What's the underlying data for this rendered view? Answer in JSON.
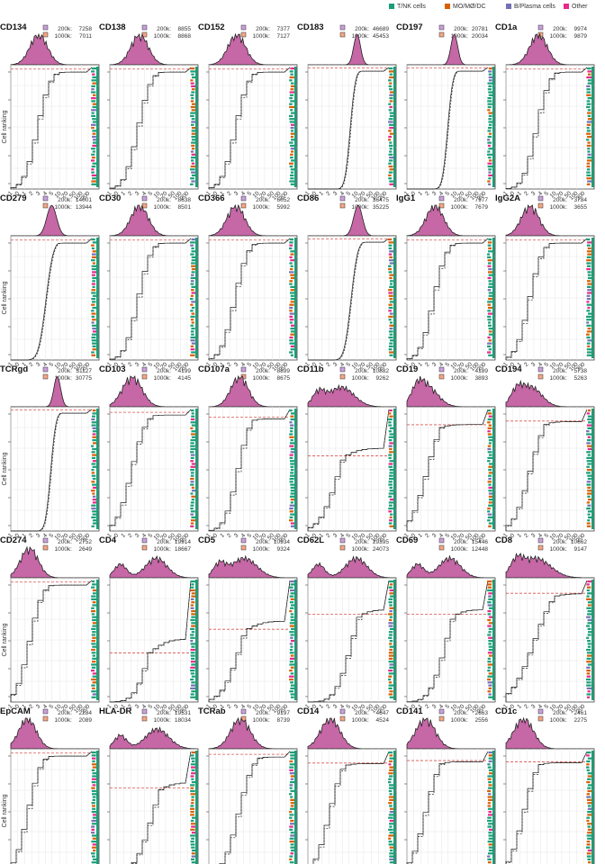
{
  "legend": {
    "items": [
      {
        "label": "T/NK cells",
        "color": "#1b9e77"
      },
      {
        "label": "MO/MØ/DC",
        "color": "#d95f02"
      },
      {
        "label": "B/Plasma cells",
        "color": "#7570b3"
      },
      {
        "label": "Other",
        "color": "#e7298a"
      }
    ]
  },
  "ylabel": "Cell ranking",
  "ticks": [
    "-1",
    "0",
    "1",
    "2",
    "3",
    "4",
    "5",
    "10",
    "20",
    "50",
    "100",
    "200"
  ],
  "series_labels": [
    "200k:",
    "1000k:"
  ],
  "colors": {
    "density": "#c667a6",
    "threshold": "#d9534f",
    "grid": "#e6e6e6"
  },
  "chart_data": [
    {
      "type": "line",
      "title": "CD134",
      "counts": [
        7258,
        7011
      ],
      "shape": {
        "c": 3.0,
        "s": 0.9,
        "cut": 0.98
      }
    },
    {
      "type": "line",
      "title": "CD138",
      "counts": [
        8855,
        8868
      ],
      "shape": {
        "c": 3.2,
        "s": 0.9,
        "cut": 0.98
      }
    },
    {
      "type": "line",
      "title": "CD152",
      "counts": [
        7377,
        7127
      ],
      "shape": {
        "c": 3.0,
        "s": 0.9,
        "cut": 0.98
      }
    },
    {
      "type": "line",
      "title": "CD183",
      "counts": [
        46689,
        45453
      ],
      "shape": {
        "c": 5.3,
        "s": 0.35,
        "cut": 0.99
      }
    },
    {
      "type": "line",
      "title": "CD197",
      "counts": [
        20781,
        20034
      ],
      "shape": {
        "c": 5.1,
        "s": 0.35,
        "cut": 0.99
      }
    },
    {
      "type": "line",
      "title": "CD1a",
      "counts": [
        9974,
        9879
      ],
      "shape": {
        "c": 3.5,
        "s": 0.9,
        "cut": 0.98
      }
    },
    {
      "type": "line",
      "title": "CD279",
      "counts": [
        14001,
        13944
      ],
      "shape": {
        "c": 4.4,
        "s": 0.5,
        "cut": 0.98
      }
    },
    {
      "type": "line",
      "title": "CD30",
      "counts": [
        8638,
        8501
      ],
      "shape": {
        "c": 3.2,
        "s": 0.9,
        "cut": 0.98
      }
    },
    {
      "type": "line",
      "title": "CD366",
      "counts": [
        6052,
        5992
      ],
      "shape": {
        "c": 2.9,
        "s": 0.9,
        "cut": 0.98
      }
    },
    {
      "type": "line",
      "title": "CD86",
      "counts": [
        36475,
        35225
      ],
      "shape": {
        "c": 5.4,
        "s": 0.45,
        "cut": 0.99
      }
    },
    {
      "type": "line",
      "title": "IgG1",
      "counts": [
        7977,
        7679
      ],
      "shape": {
        "c": 3.0,
        "s": 0.9,
        "cut": 0.98
      }
    },
    {
      "type": "line",
      "title": "IgG2A",
      "counts": [
        3784,
        3655
      ],
      "shape": {
        "c": 2.6,
        "s": 0.9,
        "cut": 0.98
      }
    },
    {
      "type": "line",
      "title": "TCRgd",
      "counts": [
        31127,
        30775
      ],
      "shape": {
        "c": 5.0,
        "s": 0.35,
        "cut": 0.99
      }
    },
    {
      "type": "line",
      "title": "CD103",
      "counts": [
        4199,
        4145
      ],
      "shape": {
        "c": 2.4,
        "s": 1.0,
        "cut": 0.97
      }
    },
    {
      "type": "line",
      "title": "CD107a",
      "counts": [
        8899,
        8675
      ],
      "shape": {
        "c": 3.3,
        "s": 0.9,
        "cut": 0.93
      }
    },
    {
      "type": "line",
      "title": "CD11b",
      "counts": [
        10882,
        9262
      ],
      "shape": {
        "c": 3.6,
        "s": 1.3,
        "cut": 0.62
      }
    },
    {
      "type": "line",
      "title": "CD19",
      "counts": [
        4189,
        3893
      ],
      "shape": {
        "c": 2.2,
        "s": 1.1,
        "cut": 0.87
      }
    },
    {
      "type": "line",
      "title": "CD194",
      "counts": [
        5738,
        5263
      ],
      "shape": {
        "c": 2.7,
        "s": 1.1,
        "cut": 0.9
      }
    },
    {
      "type": "line",
      "title": "CD274",
      "counts": [
        2752,
        2649
      ],
      "shape": {
        "c": 2.0,
        "s": 0.9,
        "cut": 0.98
      }
    },
    {
      "type": "line",
      "title": "CD4",
      "counts": [
        19914,
        18667
      ],
      "shape": {
        "c": 5.0,
        "s": 1.1,
        "cut": 0.41
      }
    },
    {
      "type": "line",
      "title": "CD5",
      "counts": [
        10934,
        9324
      ],
      "shape": {
        "c": 3.8,
        "s": 1.3,
        "cut": 0.6
      }
    },
    {
      "type": "line",
      "title": "CD62L",
      "counts": [
        29395,
        24073
      ],
      "shape": {
        "c": 5.2,
        "s": 1.1,
        "cut": 0.72
      }
    },
    {
      "type": "line",
      "title": "CD69",
      "counts": [
        15446,
        12448
      ],
      "shape": {
        "c": 4.6,
        "s": 1.1,
        "cut": 0.72
      }
    },
    {
      "type": "line",
      "title": "CD8",
      "counts": [
        10662,
        9147
      ],
      "shape": {
        "c": 3.2,
        "s": 1.5,
        "cut": 0.89
      }
    },
    {
      "type": "line",
      "title": "EpCAM",
      "counts": [
        2284,
        2089
      ],
      "shape": {
        "c": 1.8,
        "s": 0.9,
        "cut": 0.98
      }
    },
    {
      "type": "line",
      "title": "HLA-DR",
      "counts": [
        19531,
        18034
      ],
      "shape": {
        "c": 5.1,
        "s": 1.2,
        "cut": 0.7
      }
    },
    {
      "type": "line",
      "title": "TCRab",
      "counts": [
        9197,
        8739
      ],
      "shape": {
        "c": 3.4,
        "s": 1.0,
        "cut": 0.97
      }
    },
    {
      "type": "line",
      "title": "CD14",
      "counts": [
        4647,
        4524
      ],
      "shape": {
        "c": 2.4,
        "s": 1.0,
        "cut": 0.9
      }
    },
    {
      "type": "line",
      "title": "CD141",
      "counts": [
        2663,
        2556
      ],
      "shape": {
        "c": 2.0,
        "s": 1.0,
        "cut": 0.92
      }
    },
    {
      "type": "line",
      "title": "CD1c",
      "counts": [
        2461,
        2275
      ],
      "shape": {
        "c": 1.9,
        "s": 1.0,
        "cut": 0.91
      }
    }
  ]
}
